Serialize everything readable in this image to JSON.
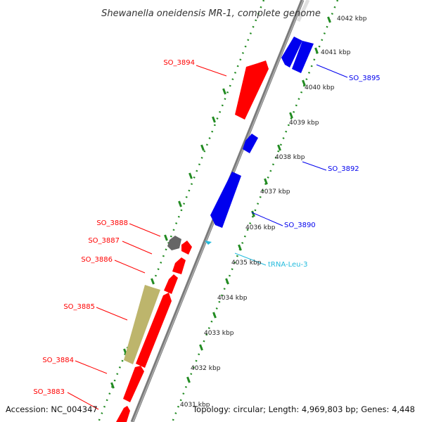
{
  "title": "Shewanella oneidensis MR-1, complete genome",
  "footer": {
    "accession": "Accession: NC_004347",
    "stats": "Topology: circular; Length: 4,969,803 bp; Genes: 4,448"
  },
  "colors": {
    "forward": "#ff0000",
    "reverse": "#0000ee",
    "trna": "#22bbdd",
    "other": "#bdb56c",
    "grey": "#666666",
    "dots": "#228b22"
  },
  "ticks": [
    "4031 kbp",
    "4032 kbp",
    "4033 kbp",
    "4034 kbp",
    "4035 kbp",
    "4036 kbp",
    "4037 kbp",
    "4038 kbp",
    "4039 kbp",
    "4040 kbp",
    "4041 kbp",
    "4042 kbp"
  ],
  "labels": [
    {
      "text": "SO_3894",
      "type": "forward"
    },
    {
      "text": "SO_3895",
      "type": "reverse"
    },
    {
      "text": "SO_3892",
      "type": "reverse"
    },
    {
      "text": "SO_3890",
      "type": "reverse"
    },
    {
      "text": "SO_3888",
      "type": "forward"
    },
    {
      "text": "SO_3887",
      "type": "forward"
    },
    {
      "text": "SO_3886",
      "type": "forward"
    },
    {
      "text": "tRNA-Leu-3",
      "type": "trna"
    },
    {
      "text": "SO_3885",
      "type": "forward"
    },
    {
      "text": "SO_3884",
      "type": "forward"
    },
    {
      "text": "SO_3883",
      "type": "forward"
    }
  ]
}
